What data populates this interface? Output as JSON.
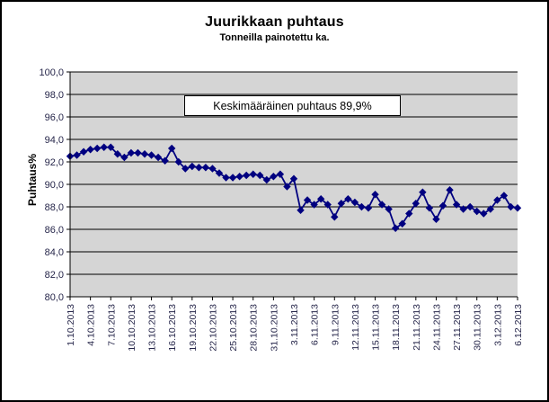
{
  "chart_data": {
    "type": "line",
    "title": "Juurikkaan puhtaus",
    "subtitle": "Tonneilla painotettu ka.",
    "ylabel": "Puhtaus%",
    "annotation": "Keskimääräinen puhtaus 89,9%",
    "ylim": [
      80,
      100
    ],
    "y_major_unit": 2,
    "grid": true,
    "legend": "none",
    "plot_bg": "#d5d5d5",
    "grid_color": "#000000",
    "axis_color": "#000000",
    "axis_text_color": "#26264a",
    "y_tick_labels": [
      "100,0",
      "98,0",
      "96,0",
      "94,0",
      "92,0",
      "90,0",
      "88,0",
      "86,0",
      "84,0",
      "82,0",
      "80,0"
    ],
    "x_tick_every": 3,
    "x_tick_labels": [
      "1.10.2013",
      "4.10.2013",
      "7.10.2013",
      "10.10.2013",
      "13.10.2013",
      "16.10.2013",
      "19.10.2013",
      "22.10.2013",
      "25.10.2013",
      "28.10.2013",
      "31.10.2013",
      "3.11.2013",
      "6.11.2013",
      "9.11.2013",
      "12.11.2013",
      "15.11.2013",
      "18.11.2013",
      "21.11.2013",
      "24.11.2013",
      "27.11.2013",
      "30.11.2013",
      "3.12.2013",
      "6.12.2013"
    ],
    "dates": [
      "1.10.2013",
      "2.10.2013",
      "3.10.2013",
      "4.10.2013",
      "5.10.2013",
      "6.10.2013",
      "7.10.2013",
      "8.10.2013",
      "9.10.2013",
      "10.10.2013",
      "11.10.2013",
      "12.10.2013",
      "13.10.2013",
      "14.10.2013",
      "15.10.2013",
      "16.10.2013",
      "17.10.2013",
      "18.10.2013",
      "19.10.2013",
      "20.10.2013",
      "21.10.2013",
      "22.10.2013",
      "23.10.2013",
      "24.10.2013",
      "25.10.2013",
      "26.10.2013",
      "27.10.2013",
      "28.10.2013",
      "29.10.2013",
      "30.10.2013",
      "31.10.2013",
      "1.11.2013",
      "2.11.2013",
      "3.11.2013",
      "4.11.2013",
      "5.11.2013",
      "6.11.2013",
      "7.11.2013",
      "8.11.2013",
      "9.11.2013",
      "10.11.2013",
      "11.11.2013",
      "12.11.2013",
      "13.11.2013",
      "14.11.2013",
      "15.11.2013",
      "16.11.2013",
      "17.11.2013",
      "18.11.2013",
      "19.11.2013",
      "20.11.2013",
      "21.11.2013",
      "22.11.2013",
      "23.11.2013",
      "24.11.2013",
      "25.11.2013",
      "26.11.2013",
      "27.11.2013",
      "28.11.2013",
      "29.11.2013",
      "30.11.2013",
      "1.12.2013",
      "2.12.2013",
      "3.12.2013",
      "4.12.2013",
      "5.12.2013",
      "6.12.2013"
    ],
    "series": [
      {
        "name": "Puhtaus%",
        "color": "#000080",
        "marker": "diamond",
        "values": [
          92.5,
          92.6,
          92.9,
          93.1,
          93.2,
          93.3,
          93.3,
          92.7,
          92.4,
          92.8,
          92.8,
          92.7,
          92.6,
          92.4,
          92.1,
          93.2,
          92.0,
          91.4,
          91.6,
          91.5,
          91.5,
          91.4,
          91.0,
          90.6,
          90.6,
          90.7,
          90.8,
          90.9,
          90.8,
          90.4,
          90.7,
          90.9,
          89.8,
          90.5,
          87.7,
          88.6,
          88.2,
          88.7,
          88.2,
          87.1,
          88.3,
          88.7,
          88.4,
          88.0,
          87.9,
          89.1,
          88.2,
          87.8,
          86.1,
          86.5,
          87.4,
          88.3,
          89.3,
          87.9,
          86.9,
          88.1,
          89.5,
          88.2,
          87.8,
          88.0,
          87.6,
          87.4,
          87.8,
          88.6,
          89.0,
          88.0,
          87.9
        ]
      }
    ]
  }
}
